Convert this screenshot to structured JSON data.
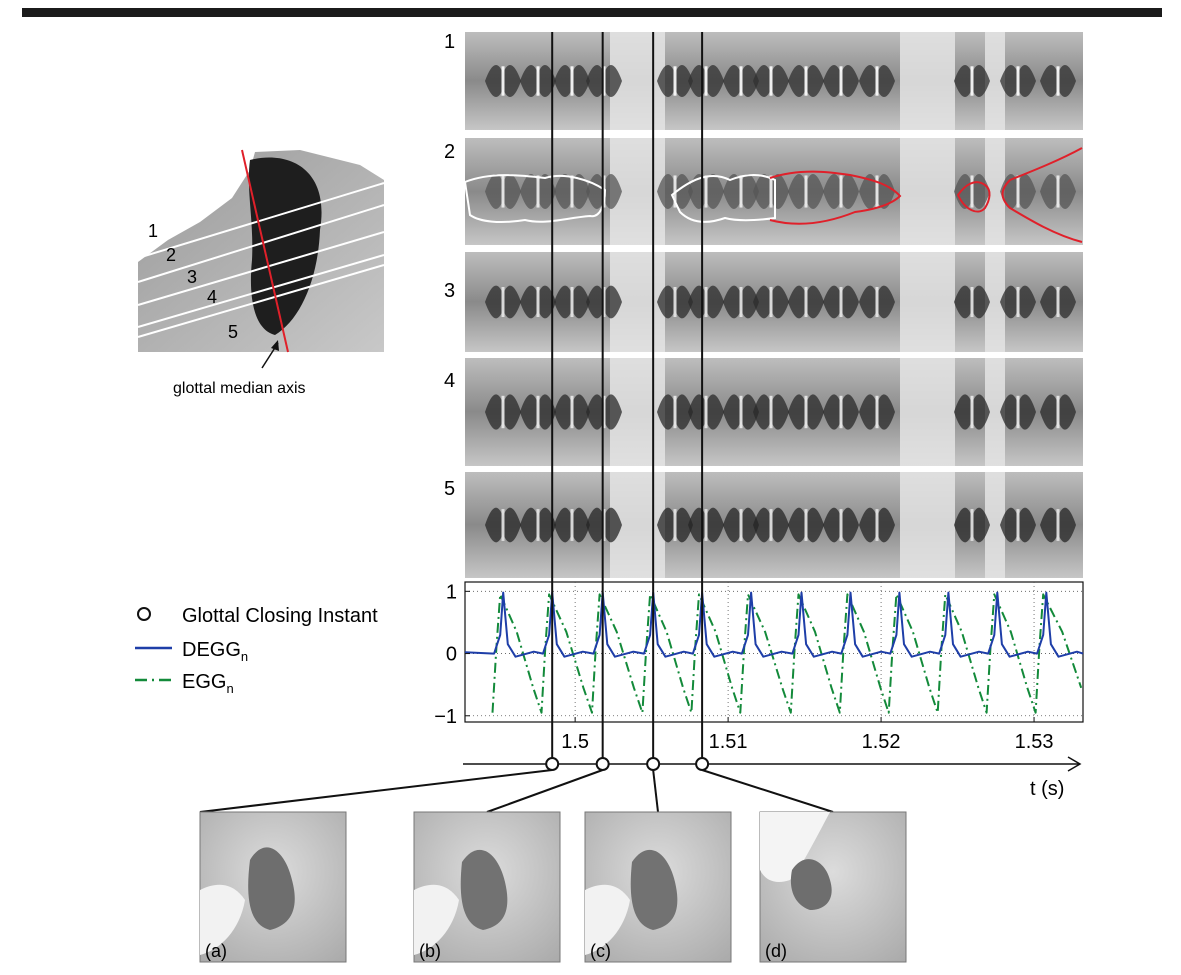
{
  "figure": {
    "inset": {
      "line_labels": [
        "1",
        "2",
        "3",
        "4",
        "5"
      ],
      "axis_label": "glottal median axis"
    },
    "kymogram_labels": [
      "1",
      "2",
      "3",
      "4",
      "5"
    ],
    "legend": {
      "gci": "Glottal Closing Instant",
      "degg_main": "DEGG",
      "degg_sub": "n",
      "egg_main": "EGG",
      "egg_sub": "n"
    },
    "time_axis_label": "t (s)",
    "frame_labels": [
      "(a)",
      "(b)",
      "(c)",
      "(d)"
    ]
  },
  "chart_data": {
    "type": "line",
    "xlim": [
      1.4928,
      1.5332
    ],
    "ylim": [
      -1.1,
      1.15
    ],
    "yticks": [
      {
        "value": 1,
        "label": "1"
      },
      {
        "value": 0,
        "label": "0"
      },
      {
        "value": -1,
        "label": "−1"
      }
    ],
    "xticks": [
      {
        "value": 1.5,
        "label": "1.5"
      },
      {
        "value": 1.51,
        "label": "1.51"
      },
      {
        "value": 1.52,
        "label": "1.52"
      },
      {
        "value": 1.53,
        "label": "1.53"
      }
    ],
    "grid": true,
    "series": [
      {
        "name": "DEGGn",
        "style": "solid",
        "color": "#1e3ea8",
        "peaks": [
          1.4953,
          1.4985,
          1.5018,
          1.5051,
          1.5083,
          1.5115,
          1.5148,
          1.518,
          1.5212,
          1.5244,
          1.5276,
          1.5308
        ]
      },
      {
        "name": "EGGn",
        "style": "dash-dot",
        "color": "#138a3a",
        "maxima": [
          1.4951,
          1.4983,
          1.5016,
          1.5049,
          1.5081,
          1.5113,
          1.5146,
          1.5178,
          1.521,
          1.5242,
          1.5274,
          1.5306
        ],
        "minima": [
          1.4946,
          1.4978,
          1.5011,
          1.5044,
          1.5076,
          1.5108,
          1.5141,
          1.5173,
          1.5205,
          1.5237,
          1.5269,
          1.5301
        ]
      }
    ],
    "gci_instants": [
      1.4985,
      1.5018,
      1.5051,
      1.5083
    ]
  },
  "colors": {
    "degg": "#1e3ea8",
    "egg": "#138a3a",
    "contour_white": "#ffffff",
    "contour_red": "#e0202a",
    "median_axis": "#e0202a"
  }
}
